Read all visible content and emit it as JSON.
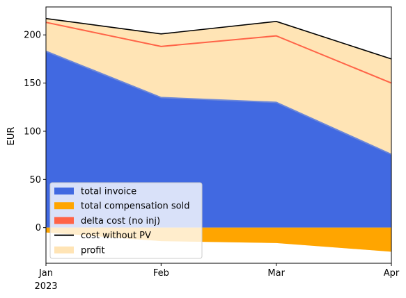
{
  "chart_data": {
    "type": "area",
    "x": [
      "Jan",
      "Feb",
      "Mar",
      "Apr"
    ],
    "x_ticks": [
      "Jan",
      "Feb",
      "Mar",
      "Apr"
    ],
    "x_year_label": "2023",
    "ylabel": "EUR",
    "xlabel": "",
    "ylim": [
      -37,
      229
    ],
    "y_ticks": [
      0,
      50,
      100,
      150,
      200
    ],
    "grid": false,
    "legend_position": "lower-left",
    "series": [
      {
        "name": "total invoice",
        "kind": "area",
        "color": "#4169e1",
        "values": [
          183,
          135,
          130,
          76
        ]
      },
      {
        "name": "total compensation sold",
        "kind": "area",
        "color": "#ffa500",
        "values": [
          -5,
          -14,
          -16,
          -25
        ]
      },
      {
        "name": "delta cost (no inj)",
        "kind": "line",
        "color": "#ff6347",
        "values": [
          213,
          188,
          199,
          150
        ]
      },
      {
        "name": "cost without PV",
        "kind": "line",
        "color": "#000000",
        "values": [
          217,
          201,
          214,
          175
        ]
      },
      {
        "name": "profit",
        "kind": "fill-between",
        "color": "#ffe4b5",
        "values": [
          217,
          201,
          214,
          175
        ]
      }
    ]
  }
}
